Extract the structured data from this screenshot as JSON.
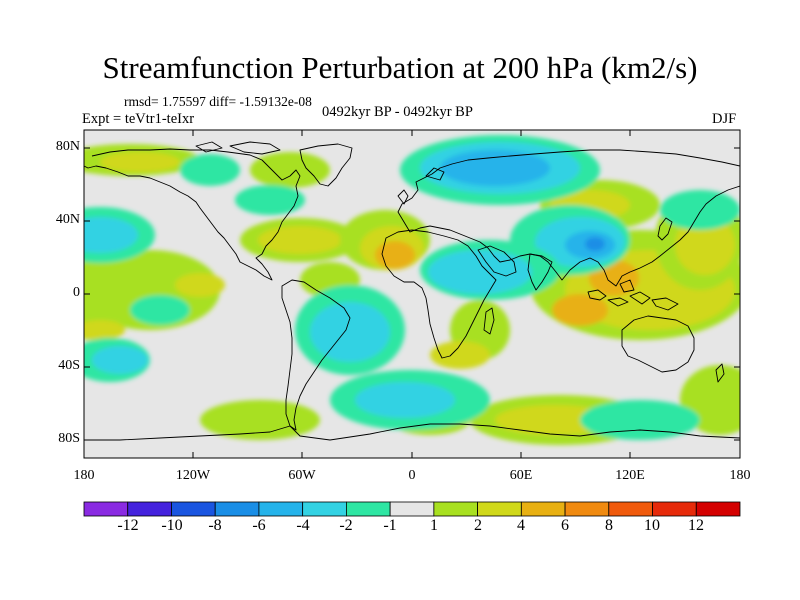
{
  "title": "Streamfunction Perturbation at 200 hPa (km2/s)",
  "stats_line": "rmsd= 1.75597 diff= -1.59132e-08",
  "experiment": "Expt = teVtr1-teIxr",
  "period": "0492kyr BP - 0492kyr BP",
  "season": "DJF",
  "lat_ticks": [
    "80N",
    "40N",
    "0",
    "40S",
    "80S"
  ],
  "lon_ticks": [
    "180",
    "120W",
    "60W",
    "0",
    "60E",
    "120E",
    "180"
  ],
  "colorbar": {
    "labels": [
      "-12",
      "-10",
      "-8",
      "-6",
      "-4",
      "-2",
      "-1",
      "1",
      "2",
      "4",
      "6",
      "8",
      "10",
      "12"
    ],
    "colors": [
      "#8a2be2",
      "#4422dd",
      "#1a55e0",
      "#1a8ee6",
      "#25b3ea",
      "#33d2e3",
      "#2ee6a3",
      "#e6e6e6",
      "#a8e020",
      "#d0d81a",
      "#e8b012",
      "#f08a10",
      "#f05a0c",
      "#e62a0a",
      "#d40000"
    ]
  },
  "map_colors": {
    "neutral": "#e6e6e6",
    "pos_1": "#a8e020",
    "pos_2": "#d0d81a",
    "pos_3": "#e8b012",
    "neg_1": "#2ee6a3",
    "neg_2": "#33d2e3",
    "neg_3": "#25b3ea",
    "neg_4": "#1a8ee6",
    "coast": "#000000"
  }
}
